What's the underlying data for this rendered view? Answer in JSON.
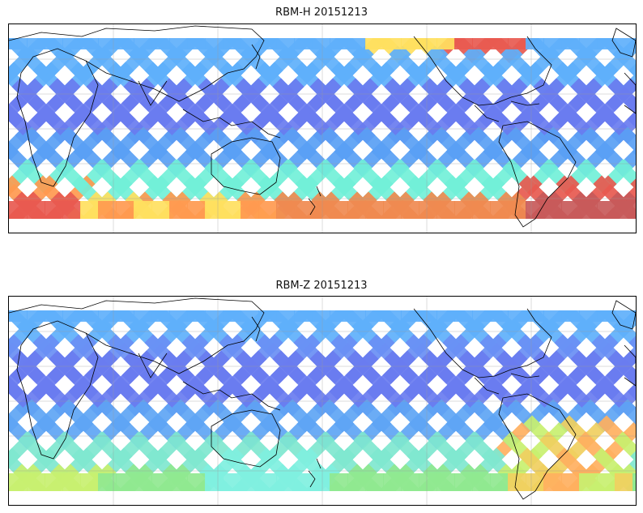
{
  "panels": [
    {
      "title": "RBM-H 20151213",
      "band_colors": [
        "#5fb0fb",
        "#5fb0fb",
        "#6a7cf0",
        "#6a7cf0",
        "#5aa0f5",
        "#72f0d8",
        "#f08a50"
      ],
      "hot_colors": [
        "#ffe060",
        "#ff9a50",
        "#e85a50",
        "#c85a5a"
      ]
    },
    {
      "title": "RBM-Z 20151213",
      "band_colors": [
        "#5fb0fb",
        "#6a90f5",
        "#6a7cf0",
        "#6a7cf0",
        "#5fa5f5",
        "#80e8d0",
        "#90e890"
      ],
      "hot_colors": [
        "#c8f070",
        "#f0d060",
        "#ffb060",
        "#80f0e0"
      ]
    }
  ]
}
